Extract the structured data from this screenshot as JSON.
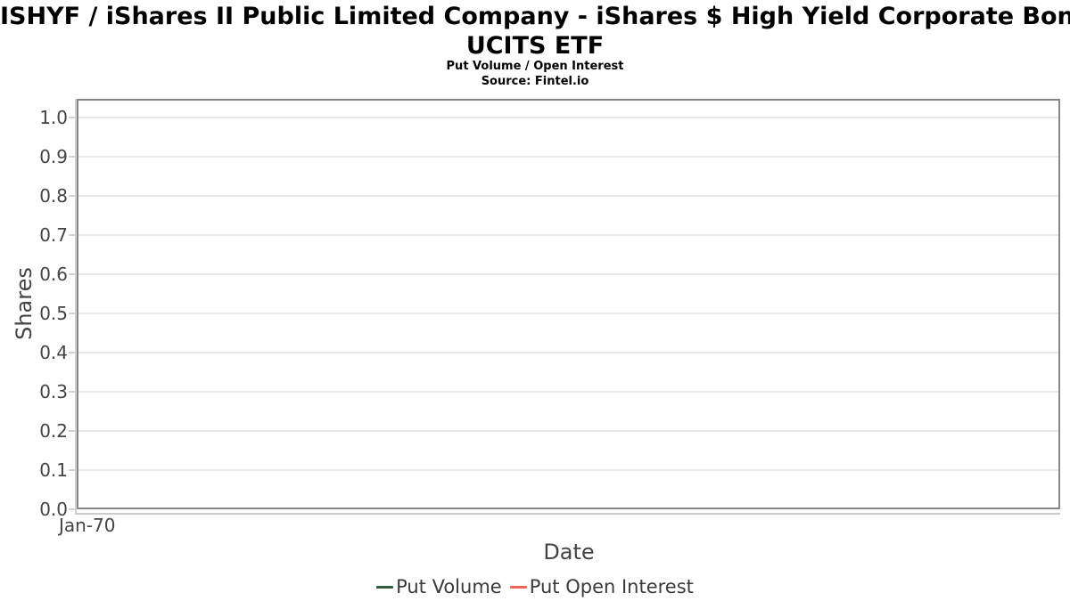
{
  "header": {
    "title_line1": "ISHYF / iShares II Public Limited Company - iShares $ High Yield Corporate Bond",
    "title_line2": "UCITS ETF",
    "subtitle": "Put Volume / Open Interest",
    "source": "Source: Fintel.io"
  },
  "chart_data": {
    "type": "line",
    "title": "ISHYF / iShares II Public Limited Company - iShares $ High Yield Corporate Bond UCITS ETF",
    "subtitle": "Put Volume / Open Interest",
    "source": "Source: Fintel.io",
    "xlabel": "Date",
    "ylabel": "Shares",
    "ylim": [
      0.0,
      1.05
    ],
    "ytick_labels": [
      "0.0",
      "0.1",
      "0.2",
      "0.3",
      "0.4",
      "0.5",
      "0.6",
      "0.7",
      "0.8",
      "0.9",
      "1.0"
    ],
    "xtick_labels": [
      "Jan-70"
    ],
    "grid": true,
    "legend_position": "bottom",
    "series": [
      {
        "name": "Put Volume",
        "color": "#2d5a3d",
        "x": [],
        "values": []
      },
      {
        "name": "Put Open Interest",
        "color": "#f4635e",
        "x": [],
        "values": []
      }
    ]
  },
  "colors": {
    "put_volume": "#2d5a3d",
    "put_open_interest": "#f4635e",
    "plot_border": "#888888",
    "gridline": "#e9e9e9",
    "axis_line": "#cccccc",
    "tick_text": "#444444"
  }
}
